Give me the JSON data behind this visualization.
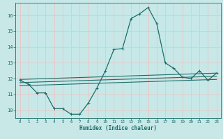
{
  "title": "",
  "xlabel": "Humidex (Indice chaleur)",
  "ylabel": "",
  "background_color": "#c8e8e8",
  "grid_color": "#e8c8c8",
  "line_color": "#1a6e6a",
  "xlim": [
    -0.5,
    23.5
  ],
  "ylim": [
    9.5,
    16.8
  ],
  "yticks": [
    10,
    11,
    12,
    13,
    14,
    15,
    16
  ],
  "xticks": [
    0,
    1,
    2,
    3,
    4,
    5,
    6,
    7,
    8,
    9,
    10,
    11,
    12,
    13,
    14,
    15,
    16,
    17,
    18,
    19,
    20,
    21,
    22,
    23
  ],
  "main_line": {
    "x": [
      0,
      1,
      2,
      3,
      4,
      5,
      6,
      7,
      8,
      9,
      10,
      11,
      12,
      13,
      14,
      15,
      16,
      17,
      18,
      19,
      20,
      21,
      22,
      23
    ],
    "y": [
      11.9,
      11.65,
      11.1,
      11.1,
      10.1,
      10.1,
      9.75,
      9.75,
      10.45,
      11.4,
      12.5,
      13.85,
      13.9,
      15.8,
      16.1,
      16.5,
      15.5,
      13.0,
      12.65,
      12.1,
      12.0,
      12.5,
      11.9,
      12.35
    ]
  },
  "aux_lines": [
    {
      "x": [
        0,
        23
      ],
      "y": [
        11.95,
        12.35
      ]
    },
    {
      "x": [
        0,
        23
      ],
      "y": [
        11.75,
        12.15
      ]
    },
    {
      "x": [
        0,
        23
      ],
      "y": [
        11.55,
        11.95
      ]
    }
  ]
}
